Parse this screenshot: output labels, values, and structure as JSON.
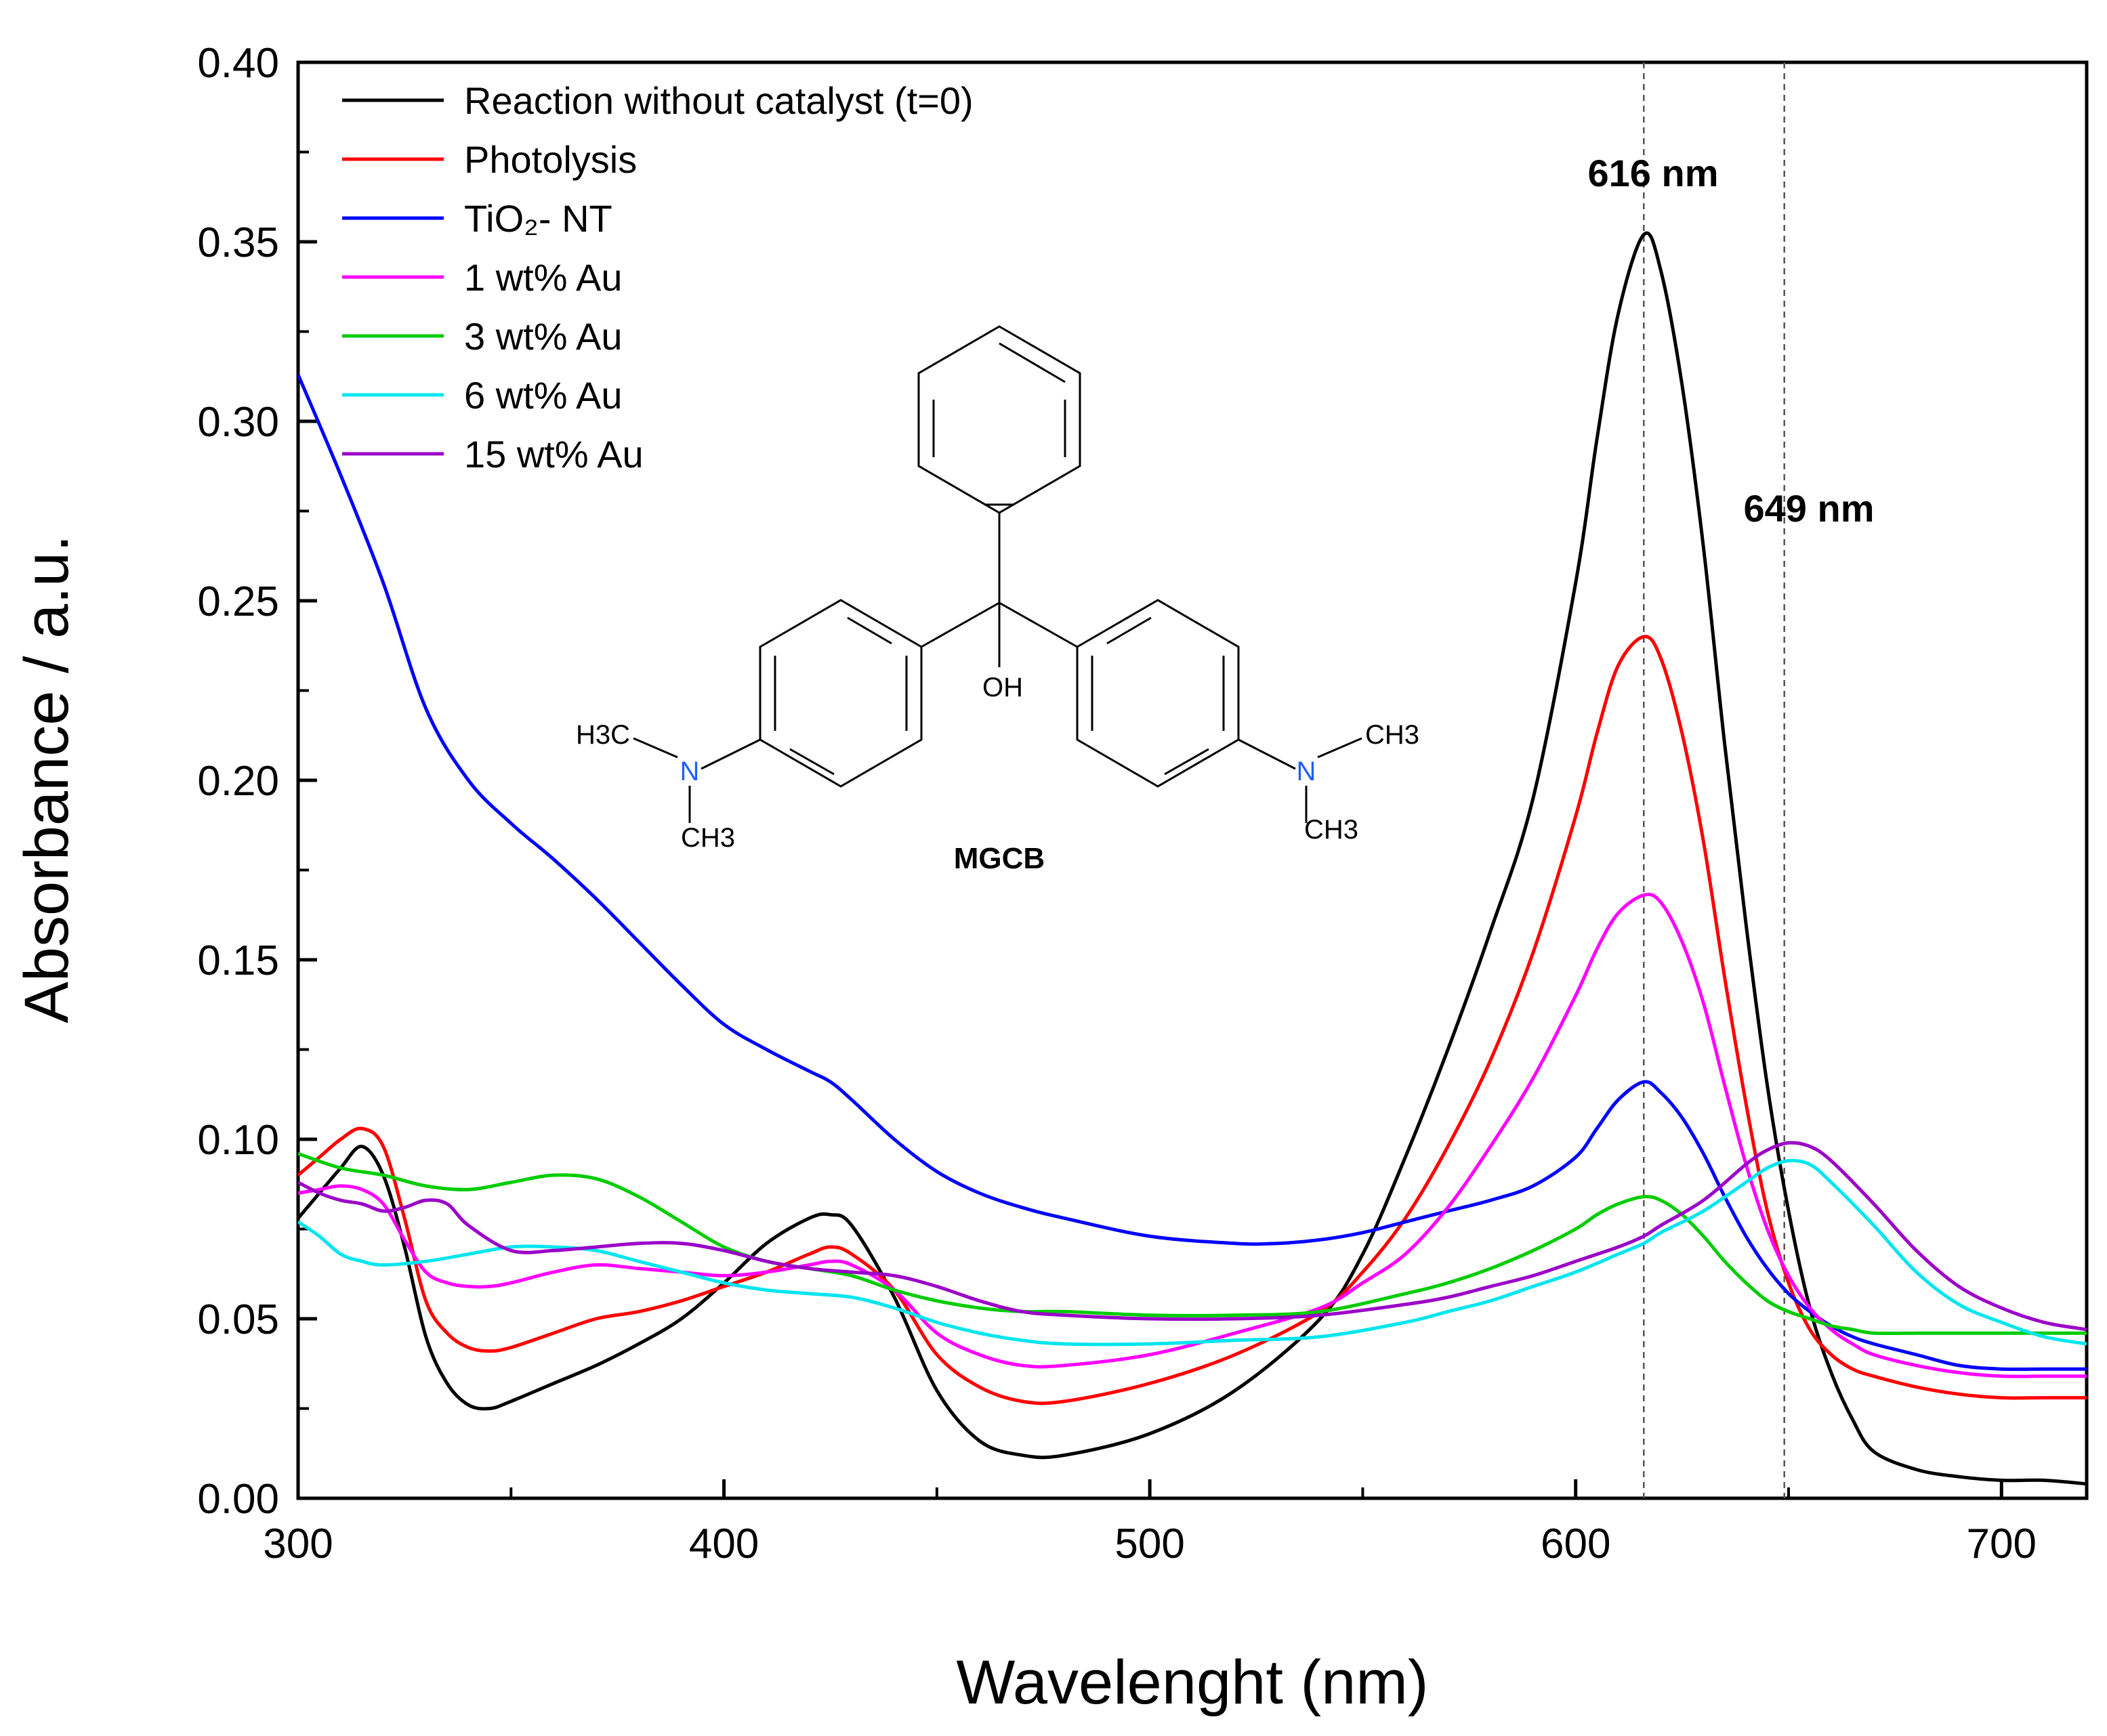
{
  "chart_data": {
    "type": "line",
    "xlabel": "Wavelenght (nm)",
    "ylabel": "Absorbance / a.u.",
    "xlim": [
      300,
      720
    ],
    "ylim": [
      0.0,
      0.4
    ],
    "xticks": [
      300,
      400,
      500,
      600,
      700
    ],
    "xtick_labels": [
      "300",
      "400",
      "500",
      "600",
      "700"
    ],
    "yticks": [
      0.0,
      0.05,
      0.1,
      0.15,
      0.2,
      0.25,
      0.3,
      0.35,
      0.4
    ],
    "ytick_labels": [
      "0.00",
      "0.05",
      "0.10",
      "0.15",
      "0.20",
      "0.25",
      "0.30",
      "0.35",
      "0.40"
    ],
    "grid": false,
    "legend_position": "top-left",
    "annotations": [
      {
        "text": "616 nm",
        "x": 616
      },
      {
        "text": "649 nm",
        "x": 649
      }
    ],
    "molecule": {
      "name": "MGCB",
      "labels": {
        "oh": "OH",
        "h3c": "H3C",
        "ch3": "CH3",
        "n": "N"
      }
    },
    "series": [
      {
        "name": "Reaction without catalyst (t=0)",
        "color": "#000000",
        "x": [
          300,
          305,
          310,
          315,
          320,
          325,
          330,
          335,
          340,
          345,
          350,
          360,
          370,
          380,
          390,
          400,
          410,
          420,
          425,
          430,
          440,
          450,
          460,
          470,
          480,
          500,
          520,
          540,
          550,
          560,
          570,
          580,
          590,
          600,
          605,
          610,
          616,
          620,
          625,
          630,
          635,
          640,
          645,
          650,
          655,
          660,
          665,
          670,
          680,
          690,
          700,
          710,
          720
        ],
        "y": [
          0.078,
          0.085,
          0.092,
          0.098,
          0.09,
          0.07,
          0.045,
          0.032,
          0.026,
          0.025,
          0.027,
          0.032,
          0.037,
          0.043,
          0.05,
          0.06,
          0.071,
          0.078,
          0.079,
          0.076,
          0.056,
          0.03,
          0.016,
          0.012,
          0.012,
          0.018,
          0.03,
          0.05,
          0.068,
          0.095,
          0.125,
          0.158,
          0.195,
          0.255,
          0.295,
          0.33,
          0.352,
          0.342,
          0.31,
          0.265,
          0.21,
          0.16,
          0.115,
          0.08,
          0.053,
          0.035,
          0.022,
          0.013,
          0.008,
          0.006,
          0.005,
          0.005,
          0.004
        ]
      },
      {
        "name": "Photolysis",
        "color": "#ff0000",
        "x": [
          300,
          305,
          310,
          315,
          320,
          325,
          330,
          335,
          340,
          345,
          350,
          360,
          370,
          380,
          390,
          400,
          410,
          420,
          425,
          430,
          440,
          450,
          460,
          470,
          480,
          500,
          520,
          540,
          550,
          560,
          570,
          580,
          590,
          600,
          605,
          610,
          616,
          620,
          625,
          630,
          635,
          640,
          645,
          650,
          655,
          660,
          665,
          670,
          680,
          690,
          700,
          710,
          720
        ],
        "y": [
          0.09,
          0.095,
          0.1,
          0.103,
          0.098,
          0.078,
          0.055,
          0.046,
          0.042,
          0.041,
          0.042,
          0.046,
          0.05,
          0.052,
          0.055,
          0.059,
          0.063,
          0.068,
          0.07,
          0.068,
          0.058,
          0.04,
          0.031,
          0.027,
          0.027,
          0.032,
          0.04,
          0.052,
          0.063,
          0.078,
          0.098,
          0.122,
          0.152,
          0.19,
          0.213,
          0.232,
          0.24,
          0.234,
          0.213,
          0.183,
          0.145,
          0.11,
          0.08,
          0.06,
          0.047,
          0.04,
          0.036,
          0.034,
          0.031,
          0.029,
          0.028,
          0.028,
          0.028
        ]
      },
      {
        "name": "TiO₂- NT",
        "color": "#0000ff",
        "x": [
          300,
          310,
          320,
          330,
          340,
          350,
          360,
          370,
          380,
          390,
          400,
          410,
          420,
          425,
          430,
          440,
          450,
          460,
          470,
          480,
          500,
          520,
          530,
          540,
          550,
          560,
          570,
          580,
          590,
          600,
          605,
          610,
          616,
          620,
          625,
          630,
          635,
          640,
          645,
          650,
          655,
          660,
          665,
          670,
          680,
          690,
          700,
          710,
          720
        ],
        "y": [
          0.313,
          0.285,
          0.255,
          0.22,
          0.2,
          0.188,
          0.178,
          0.167,
          0.155,
          0.143,
          0.132,
          0.125,
          0.119,
          0.116,
          0.111,
          0.1,
          0.091,
          0.085,
          0.081,
          0.078,
          0.073,
          0.071,
          0.071,
          0.072,
          0.074,
          0.077,
          0.08,
          0.083,
          0.087,
          0.095,
          0.103,
          0.111,
          0.116,
          0.113,
          0.106,
          0.096,
          0.084,
          0.073,
          0.064,
          0.057,
          0.052,
          0.048,
          0.045,
          0.043,
          0.04,
          0.037,
          0.036,
          0.036,
          0.036
        ]
      },
      {
        "name": "1 wt% Au",
        "color": "#ff00ff",
        "x": [
          300,
          305,
          310,
          315,
          320,
          325,
          330,
          335,
          340,
          345,
          350,
          360,
          370,
          380,
          390,
          400,
          410,
          420,
          425,
          430,
          440,
          450,
          460,
          470,
          480,
          500,
          520,
          540,
          550,
          560,
          570,
          580,
          590,
          600,
          605,
          610,
          616,
          620,
          625,
          630,
          635,
          640,
          645,
          650,
          655,
          660,
          665,
          670,
          680,
          690,
          700,
          710,
          720
        ],
        "y": [
          0.085,
          0.086,
          0.087,
          0.086,
          0.082,
          0.072,
          0.063,
          0.06,
          0.059,
          0.059,
          0.06,
          0.063,
          0.065,
          0.064,
          0.063,
          0.062,
          0.063,
          0.065,
          0.066,
          0.065,
          0.058,
          0.046,
          0.04,
          0.037,
          0.037,
          0.04,
          0.046,
          0.053,
          0.06,
          0.068,
          0.081,
          0.098,
          0.117,
          0.14,
          0.153,
          0.163,
          0.168,
          0.166,
          0.155,
          0.138,
          0.115,
          0.093,
          0.075,
          0.062,
          0.053,
          0.047,
          0.043,
          0.04,
          0.037,
          0.035,
          0.034,
          0.034,
          0.034
        ]
      },
      {
        "name": "3 wt% Au",
        "color": "#00cc00",
        "x": [
          300,
          310,
          320,
          330,
          340,
          350,
          360,
          370,
          380,
          390,
          400,
          410,
          420,
          430,
          440,
          450,
          460,
          470,
          480,
          500,
          520,
          540,
          560,
          570,
          580,
          590,
          600,
          605,
          610,
          616,
          620,
          625,
          630,
          635,
          640,
          645,
          650,
          655,
          660,
          665,
          670,
          680,
          690,
          700,
          710,
          720
        ],
        "y": [
          0.096,
          0.092,
          0.09,
          0.087,
          0.086,
          0.088,
          0.09,
          0.089,
          0.084,
          0.077,
          0.07,
          0.066,
          0.064,
          0.062,
          0.058,
          0.055,
          0.053,
          0.052,
          0.052,
          0.051,
          0.051,
          0.052,
          0.057,
          0.06,
          0.064,
          0.069,
          0.075,
          0.079,
          0.082,
          0.084,
          0.083,
          0.079,
          0.073,
          0.066,
          0.06,
          0.055,
          0.052,
          0.05,
          0.048,
          0.047,
          0.046,
          0.046,
          0.046,
          0.046,
          0.046,
          0.046
        ]
      },
      {
        "name": "6 wt% Au",
        "color": "#00e5ee",
        "x": [
          300,
          305,
          310,
          315,
          320,
          330,
          340,
          350,
          360,
          370,
          380,
          390,
          400,
          410,
          420,
          430,
          440,
          450,
          460,
          470,
          480,
          500,
          520,
          540,
          560,
          570,
          580,
          590,
          600,
          610,
          616,
          620,
          630,
          640,
          645,
          650,
          655,
          660,
          670,
          680,
          690,
          700,
          710,
          720
        ],
        "y": [
          0.077,
          0.073,
          0.068,
          0.066,
          0.065,
          0.066,
          0.068,
          0.07,
          0.07,
          0.069,
          0.066,
          0.063,
          0.06,
          0.058,
          0.057,
          0.056,
          0.053,
          0.049,
          0.046,
          0.044,
          0.043,
          0.043,
          0.044,
          0.045,
          0.049,
          0.052,
          0.055,
          0.059,
          0.063,
          0.068,
          0.071,
          0.074,
          0.08,
          0.088,
          0.092,
          0.094,
          0.093,
          0.088,
          0.076,
          0.063,
          0.054,
          0.049,
          0.045,
          0.043
        ]
      },
      {
        "name": "15 wt% Au",
        "color": "#9b00c8",
        "x": [
          300,
          305,
          310,
          315,
          320,
          325,
          330,
          335,
          340,
          350,
          360,
          370,
          380,
          390,
          400,
          410,
          420,
          430,
          440,
          450,
          460,
          470,
          480,
          500,
          520,
          540,
          560,
          570,
          580,
          590,
          600,
          610,
          616,
          620,
          630,
          640,
          645,
          650,
          655,
          660,
          670,
          680,
          690,
          700,
          710,
          720
        ],
        "y": [
          0.088,
          0.085,
          0.083,
          0.082,
          0.08,
          0.081,
          0.083,
          0.082,
          0.076,
          0.069,
          0.069,
          0.07,
          0.071,
          0.071,
          0.069,
          0.066,
          0.064,
          0.063,
          0.062,
          0.059,
          0.055,
          0.052,
          0.051,
          0.05,
          0.05,
          0.051,
          0.054,
          0.056,
          0.059,
          0.062,
          0.066,
          0.07,
          0.073,
          0.076,
          0.083,
          0.093,
          0.097,
          0.099,
          0.098,
          0.094,
          0.082,
          0.069,
          0.059,
          0.053,
          0.049,
          0.047
        ]
      }
    ]
  }
}
